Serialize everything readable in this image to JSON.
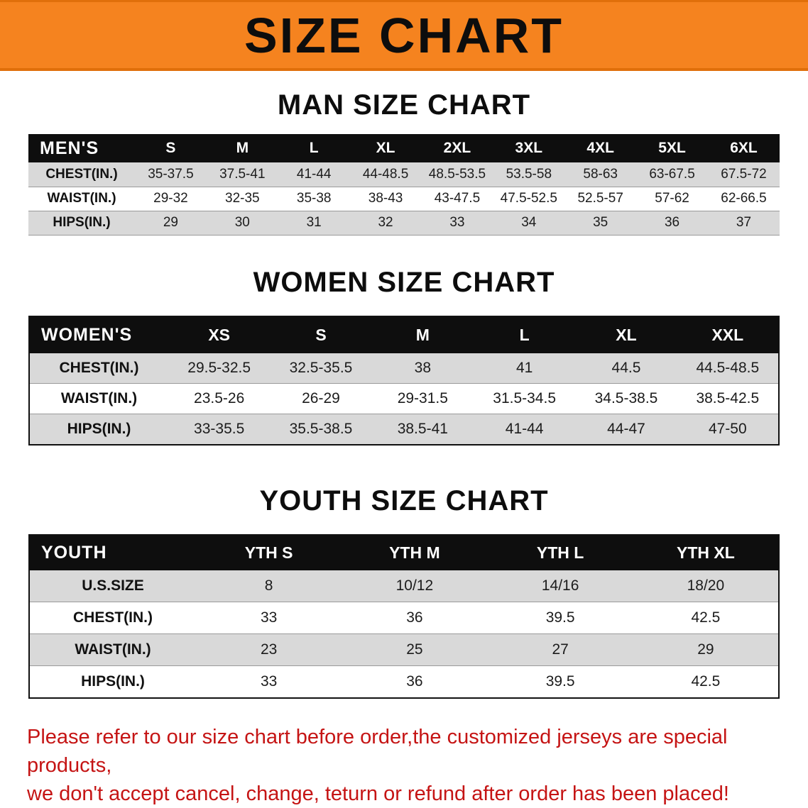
{
  "colors": {
    "banner_bg": "#f5831f",
    "banner_border": "#e06f0a",
    "table_header_bg": "#0e0e0e",
    "row_stripe": "#d9d9d9",
    "footer_text": "#c51414"
  },
  "banner": {
    "title": "SIZE CHART"
  },
  "men": {
    "heading": "MAN SIZE CHART",
    "header": [
      "MEN'S",
      "S",
      "M",
      "L",
      "XL",
      "2XL",
      "3XL",
      "4XL",
      "5XL",
      "6XL"
    ],
    "rows": [
      {
        "label": "CHEST(IN.)",
        "values": [
          "35-37.5",
          "37.5-41",
          "41-44",
          "44-48.5",
          "48.5-53.5",
          "53.5-58",
          "58-63",
          "63-67.5",
          "67.5-72"
        ]
      },
      {
        "label": "WAIST(IN.)",
        "values": [
          "29-32",
          "32-35",
          "35-38",
          "38-43",
          "43-47.5",
          "47.5-52.5",
          "52.5-57",
          "57-62",
          "62-66.5"
        ]
      },
      {
        "label": "HIPS(IN.)",
        "values": [
          "29",
          "30",
          "31",
          "32",
          "33",
          "34",
          "35",
          "36",
          "37"
        ]
      }
    ]
  },
  "women": {
    "heading": "WOMEN SIZE CHART",
    "header": [
      "WOMEN'S",
      "XS",
      "S",
      "M",
      "L",
      "XL",
      "XXL"
    ],
    "rows": [
      {
        "label": "CHEST(IN.)",
        "values": [
          "29.5-32.5",
          "32.5-35.5",
          "38",
          "41",
          "44.5",
          "44.5-48.5"
        ]
      },
      {
        "label": "WAIST(IN.)",
        "values": [
          "23.5-26",
          "26-29",
          "29-31.5",
          "31.5-34.5",
          "34.5-38.5",
          "38.5-42.5"
        ]
      },
      {
        "label": "HIPS(IN.)",
        "values": [
          "33-35.5",
          "35.5-38.5",
          "38.5-41",
          "41-44",
          "44-47",
          "47-50"
        ]
      }
    ]
  },
  "youth": {
    "heading": "YOUTH SIZE CHART",
    "header": [
      "YOUTH",
      "YTH S",
      "YTH M",
      "YTH L",
      "YTH XL"
    ],
    "rows": [
      {
        "label": "U.S.SIZE",
        "values": [
          "8",
          "10/12",
          "14/16",
          "18/20"
        ]
      },
      {
        "label": "CHEST(IN.)",
        "values": [
          "33",
          "36",
          "39.5",
          "42.5"
        ]
      },
      {
        "label": "WAIST(IN.)",
        "values": [
          "23",
          "25",
          "27",
          "29"
        ]
      },
      {
        "label": "HIPS(IN.)",
        "values": [
          "33",
          "36",
          "39.5",
          "42.5"
        ]
      }
    ]
  },
  "footer": {
    "line1": "Please refer to our size chart before order,the customized jerseys are special products,",
    "line2": "we don't accept cancel, change, teturn or refund after order has been placed!"
  }
}
